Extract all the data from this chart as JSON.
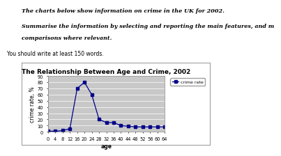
{
  "title": "The Relationship Between Age and Crime, 2002",
  "xlabel": "age",
  "ylabel": "crime rate, %",
  "ages": [
    0,
    4,
    8,
    12,
    16,
    20,
    24,
    28,
    32,
    36,
    40,
    44,
    48,
    52,
    56,
    60,
    64
  ],
  "crime_rate": [
    1,
    1,
    2,
    5,
    70,
    80,
    60,
    20,
    15,
    15,
    10,
    9,
    8,
    8,
    8,
    8,
    8
  ],
  "ylim": [
    0,
    90
  ],
  "yticks": [
    0,
    10,
    20,
    30,
    40,
    50,
    60,
    70,
    80,
    90
  ],
  "line_color": "#00008B",
  "marker": "s",
  "marker_size": 2.5,
  "legend_label": "crime rate",
  "plot_bg_color": "#C8C8C8",
  "fig_bg_color": "#FFFFFF",
  "border_color": "#808080",
  "title_fontsize": 6.5,
  "label_fontsize": 5.5,
  "tick_fontsize": 4.8,
  "header_text1": "The charts below show information on crime in the UK for 2002.",
  "header_text2": "Summarise the information by selecting and reporting the main features, and m",
  "header_text3": "comparisons where relevant.",
  "header_text4": "You should write at least 150 words."
}
